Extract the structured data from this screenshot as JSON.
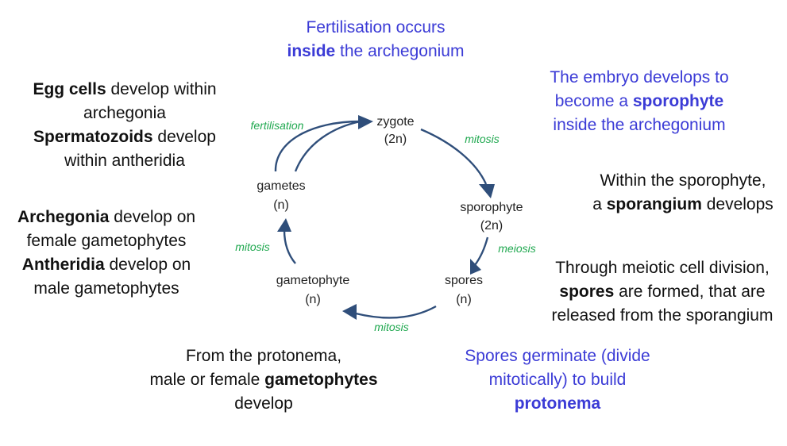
{
  "cycle": {
    "nodes": {
      "zygote": {
        "name": "zygote",
        "ploidy": "(2n)"
      },
      "sporophyte": {
        "name": "sporophyte",
        "ploidy": "(2n)"
      },
      "spores": {
        "name": "spores",
        "ploidy": "(n)"
      },
      "gametophyte": {
        "name": "gametophyte",
        "ploidy": "(n)"
      },
      "gametes": {
        "name": "gametes",
        "ploidy": "(n)"
      }
    },
    "processes": {
      "fertilisation": "fertilisation",
      "mitosis_zygote": "mitosis",
      "meiosis": "meiosis",
      "mitosis_spores": "mitosis",
      "mitosis_gametophyte": "mitosis"
    }
  },
  "notes": {
    "fertilisation": {
      "line1": "Fertilisation occurs",
      "line2_bold": "inside",
      "line2_rest": " the archegonium"
    },
    "embryo": {
      "line1": "The embryo develops to",
      "line2_pre": "become a ",
      "line2_bold": "sporophyte",
      "line3": "inside the archegonium"
    },
    "sporangium": {
      "line1": "Within the sporophyte,",
      "line2_pre": "a ",
      "line2_bold": "sporangium",
      "line2_post": " develops"
    },
    "meiotic": {
      "line1": "Through meiotic cell division,",
      "line2_bold": "spores",
      "line2_post": " are formed, that are",
      "line3": "released from the sporangium"
    },
    "germinate": {
      "line1": "Spores germinate (divide",
      "line2": "mitotically) to build",
      "line3_bold": "protonema"
    },
    "protonema": {
      "line1": "From the protonema,",
      "line2_pre": "male or female ",
      "line2_bold": "gametophytes",
      "line3": "develop"
    },
    "archegonia": {
      "line1_bold": "Archegonia",
      "line1_post": " develop on",
      "line2": "female gametophytes",
      "line3_bold": "Antheridia",
      "line3_post": " develop on",
      "line4": "male gametophytes"
    },
    "eggcells": {
      "line1_bold": "Egg cells",
      "line1_post": " develop within",
      "line2": "archegonia",
      "line3_bold": "Spermatozoids",
      "line3_post": " develop",
      "line4": "within antheridia"
    }
  }
}
